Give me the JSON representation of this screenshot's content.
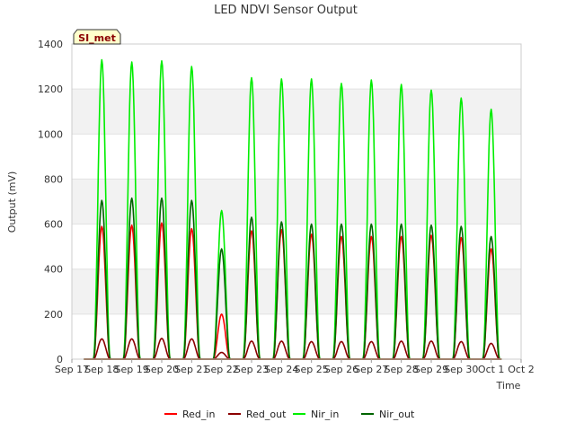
{
  "chart_data": {
    "type": "line",
    "title": "LED NDVI Sensor Output",
    "xlabel": "Time",
    "ylabel": "Output (mV)",
    "site_label": "SI_met",
    "ylim": [
      0,
      1400
    ],
    "yticks": [
      0,
      200,
      400,
      600,
      800,
      1000,
      1200,
      1400
    ],
    "xlim_days": [
      0,
      15
    ],
    "xticks": [
      "Sep 17",
      "Sep 18",
      "Sep 19",
      "Sep 20",
      "Sep 21",
      "Sep 22",
      "Sep 23",
      "Sep 24",
      "Sep 25",
      "Sep 26",
      "Sep 27",
      "Sep 28",
      "Sep 29",
      "Sep 30",
      "Oct 1",
      "Oct 2"
    ],
    "grid": true,
    "legend_position": "bottom",
    "daily_peaks_x": [
      "Sep 18",
      "Sep 19",
      "Sep 20",
      "Sep 21",
      "Sep 22",
      "Sep 23",
      "Sep 24",
      "Sep 25",
      "Sep 26",
      "Sep 27",
      "Sep 28",
      "Sep 29",
      "Sep 30",
      "Oct 1"
    ],
    "series": [
      {
        "name": "Red_in",
        "color": "#ff0000",
        "daily_peak": [
          590,
          595,
          605,
          580,
          200,
          570,
          575,
          555,
          545,
          545,
          545,
          550,
          540,
          490
        ]
      },
      {
        "name": "Red_out",
        "color": "#8b0000",
        "daily_peak": [
          90,
          90,
          92,
          90,
          30,
          80,
          80,
          78,
          78,
          78,
          80,
          80,
          78,
          70
        ]
      },
      {
        "name": "Nir_in",
        "color": "#00ee00",
        "daily_peak": [
          1330,
          1320,
          1325,
          1300,
          660,
          1250,
          1245,
          1245,
          1225,
          1240,
          1220,
          1195,
          1160,
          1110
        ]
      },
      {
        "name": "Nir_out",
        "color": "#006400",
        "daily_peak": [
          705,
          715,
          715,
          705,
          490,
          630,
          610,
          600,
          600,
          600,
          600,
          595,
          590,
          545
        ]
      }
    ]
  }
}
